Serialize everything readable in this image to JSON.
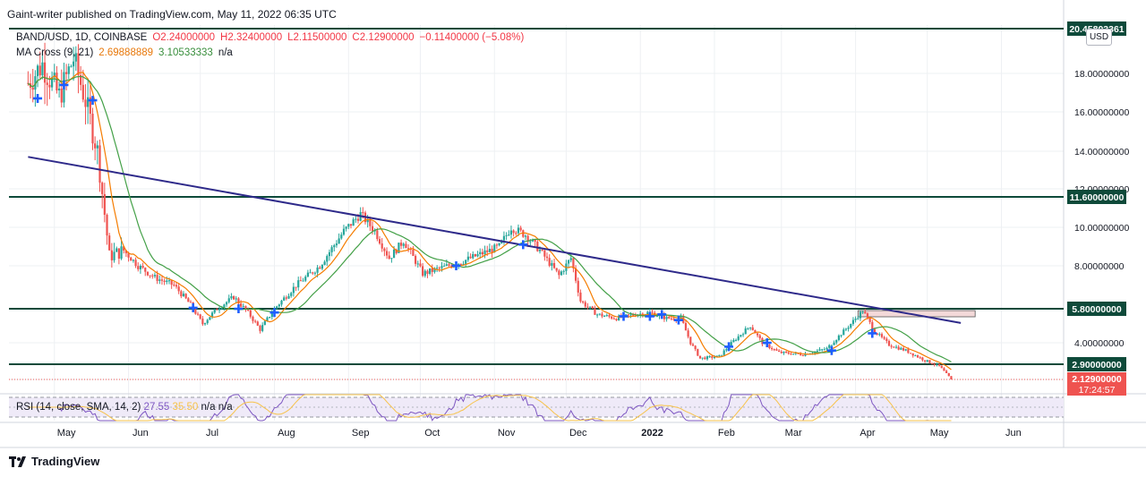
{
  "header": {
    "text": "Gaint-writer published on TradingView.com, May 11, 2022 06:35 UTC"
  },
  "legend": {
    "symbol": "BAND/USD, 1D, COINBASE",
    "open": "O2.24000000",
    "high": "H2.32400000",
    "low": "L2.11500000",
    "close": "C2.12900000",
    "change": "−0.11400000 (−5.08%)",
    "ma_label": "MA Cross (9, 21)",
    "ma_fast": "2.69888889",
    "ma_slow": "3.10533333",
    "na": "n/a"
  },
  "rsi_legend": {
    "label": "RSI (14, close, SMA, 14, 2)",
    "value": "27.55",
    "value2": "35.50",
    "na1": "n/a",
    "na2": "n/a"
  },
  "currency": "USD",
  "footer": {
    "brand": "TradingView"
  },
  "colors": {
    "up": "#26a69a",
    "down": "#ef5350",
    "ma_fast": "#f57c00",
    "ma_slow": "#43a047",
    "trendline": "#2e2a8a",
    "level_line": "#0e4a3a",
    "rsi": "#7e57c2",
    "rsi_ma": "#f7c34b"
  },
  "chart_data": {
    "type": "candlestick",
    "x_labels": [
      "May",
      "Jun",
      "Jul",
      "Aug",
      "Sep",
      "Oct",
      "Nov",
      "Dec",
      "2022",
      "Feb",
      "Mar",
      "Apr",
      "May",
      "Jun"
    ],
    "y_ticks": [
      "20.45803361",
      "18.00000000",
      "16.00000000",
      "14.00000000",
      "12.00000000",
      "11.60000000",
      "10.00000000",
      "8.00000000",
      "5.80000000",
      "4.00000000",
      "2.90000000",
      "2.12900000"
    ],
    "ylim": [
      1.5,
      20.5
    ],
    "horizontal_levels": [
      {
        "value": 20.45803361,
        "label": "20.45803361"
      },
      {
        "value": 11.6,
        "label": "11.60000000"
      },
      {
        "value": 5.8,
        "label": "5.80000000"
      },
      {
        "value": 2.9,
        "label": "2.90000000"
      }
    ],
    "last_price": {
      "value": 2.129,
      "label": "2.12900000",
      "countdown": "17:24:57"
    },
    "trendline": {
      "start": {
        "date": "2021-04-20",
        "value": 13.7
      },
      "end": {
        "date": "2022-05-15",
        "value": 5.05
      }
    },
    "price_path": [
      [
        "2021-04-20",
        17.5
      ],
      [
        "2021-04-26",
        18.5
      ],
      [
        "2021-05-03",
        16.8
      ],
      [
        "2021-05-09",
        18.8
      ],
      [
        "2021-05-14",
        16.6
      ],
      [
        "2021-05-19",
        14.0
      ],
      [
        "2021-05-24",
        8.5
      ],
      [
        "2021-05-30",
        8.8
      ],
      [
        "2021-06-05",
        8.0
      ],
      [
        "2021-06-12",
        7.4
      ],
      [
        "2021-06-20",
        7.0
      ],
      [
        "2021-06-27",
        6.0
      ],
      [
        "2021-07-02",
        5.0
      ],
      [
        "2021-07-08",
        5.8
      ],
      [
        "2021-07-15",
        6.4
      ],
      [
        "2021-07-21",
        5.6
      ],
      [
        "2021-07-26",
        4.7
      ],
      [
        "2021-08-01",
        5.8
      ],
      [
        "2021-08-10",
        7.0
      ],
      [
        "2021-08-20",
        8.0
      ],
      [
        "2021-08-30",
        9.8
      ],
      [
        "2021-09-06",
        10.7
      ],
      [
        "2021-09-12",
        9.8
      ],
      [
        "2021-09-18",
        8.4
      ],
      [
        "2021-09-24",
        9.3
      ],
      [
        "2021-10-02",
        7.6
      ],
      [
        "2021-10-10",
        7.9
      ],
      [
        "2021-10-18",
        8.2
      ],
      [
        "2021-10-26",
        8.6
      ],
      [
        "2021-11-03",
        9.0
      ],
      [
        "2021-11-08",
        10.0
      ],
      [
        "2021-11-14",
        9.6
      ],
      [
        "2021-11-20",
        8.8
      ],
      [
        "2021-11-28",
        7.5
      ],
      [
        "2021-12-03",
        8.4
      ],
      [
        "2021-12-07",
        6.2
      ],
      [
        "2021-12-14",
        5.5
      ],
      [
        "2021-12-22",
        5.3
      ],
      [
        "2021-12-30",
        5.5
      ],
      [
        "2022-01-05",
        5.6
      ],
      [
        "2022-01-12",
        5.3
      ],
      [
        "2022-01-18",
        5.3
      ],
      [
        "2022-01-22",
        4.0
      ],
      [
        "2022-01-26",
        3.2
      ],
      [
        "2022-02-03",
        3.3
      ],
      [
        "2022-02-09",
        4.1
      ],
      [
        "2022-02-16",
        4.9
      ],
      [
        "2022-02-21",
        4.0
      ],
      [
        "2022-02-28",
        3.5
      ],
      [
        "2022-03-10",
        3.4
      ],
      [
        "2022-03-20",
        3.7
      ],
      [
        "2022-03-30",
        5.0
      ],
      [
        "2022-04-04",
        5.7
      ],
      [
        "2022-04-09",
        4.6
      ],
      [
        "2022-04-15",
        3.9
      ],
      [
        "2022-04-22",
        3.6
      ],
      [
        "2022-04-30",
        3.1
      ],
      [
        "2022-05-06",
        2.8
      ],
      [
        "2022-05-11",
        2.13
      ]
    ],
    "ma_cross_markers": [
      [
        "2021-04-24",
        16.7
      ],
      [
        "2021-05-05",
        17.4
      ],
      [
        "2021-05-17",
        16.6
      ],
      [
        "2021-06-28",
        5.85
      ],
      [
        "2021-07-17",
        5.8
      ],
      [
        "2021-08-01",
        5.6
      ],
      [
        "2021-10-16",
        8.0
      ],
      [
        "2021-11-13",
        9.1
      ],
      [
        "2021-12-25",
        5.4
      ],
      [
        "2022-01-05",
        5.4
      ],
      [
        "2022-01-10",
        5.5
      ],
      [
        "2022-01-17",
        5.2
      ],
      [
        "2022-02-07",
        3.8
      ],
      [
        "2022-02-23",
        4.0
      ],
      [
        "2022-03-22",
        3.6
      ],
      [
        "2022-04-08",
        4.5
      ]
    ],
    "rsi": {
      "value": 27.55,
      "ma": 35.5,
      "upper": 70,
      "lower": 30
    }
  }
}
